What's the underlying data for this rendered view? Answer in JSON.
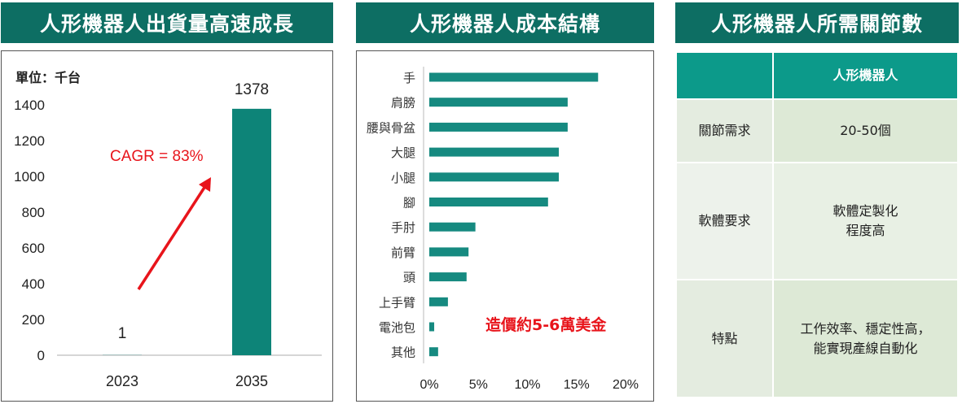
{
  "panels": {
    "left_title": "人形機器人出貨量高速成長",
    "middle_title": "人形機器人成本結構",
    "right_title": "人形機器人所需關節數"
  },
  "chart_data": [
    {
      "type": "bar",
      "title": "人形機器人出貨量高速成長",
      "unit_label": "單位：千台",
      "categories": [
        "2023",
        "2035"
      ],
      "values": [
        1,
        1378
      ],
      "data_labels": [
        "1",
        "1378"
      ],
      "ylim": [
        0,
        1400
      ],
      "yticks": [
        0,
        200,
        400,
        600,
        800,
        1000,
        1200,
        1400
      ],
      "annotation": "CAGR = 83%",
      "bar_color": "#0d8478",
      "annotation_color": "#e8141b",
      "grid": false
    },
    {
      "type": "bar",
      "orientation": "horizontal",
      "title": "人形機器人成本結構",
      "categories": [
        "手",
        "肩膀",
        "腰與骨盆",
        "大腿",
        "小腿",
        "腳",
        "手肘",
        "前臂",
        "頭",
        "上手臂",
        "電池包",
        "其他"
      ],
      "values": [
        17.2,
        14.1,
        14.1,
        13.2,
        13.2,
        12.1,
        4.7,
        4.0,
        3.8,
        1.9,
        0.5,
        0.9
      ],
      "xlim": [
        0,
        20
      ],
      "xticks": [
        "0%",
        "5%",
        "10%",
        "15%",
        "20%"
      ],
      "annotation": "造價約5-6萬美金",
      "bar_color": "#168a80",
      "annotation_color": "#e8141b",
      "grid": false
    }
  ],
  "table": {
    "header": [
      "",
      "人形機器人"
    ],
    "rows": [
      {
        "label": "關節需求",
        "value": "20-50個"
      },
      {
        "label": "軟體要求",
        "value_line1": "軟體定製化",
        "value_line2": "程度高"
      },
      {
        "label": "特點",
        "value_line1": "工作效率、穩定性高，",
        "value_line2": "能實現產線自動化"
      }
    ],
    "header_color": "#0c9a8a"
  }
}
